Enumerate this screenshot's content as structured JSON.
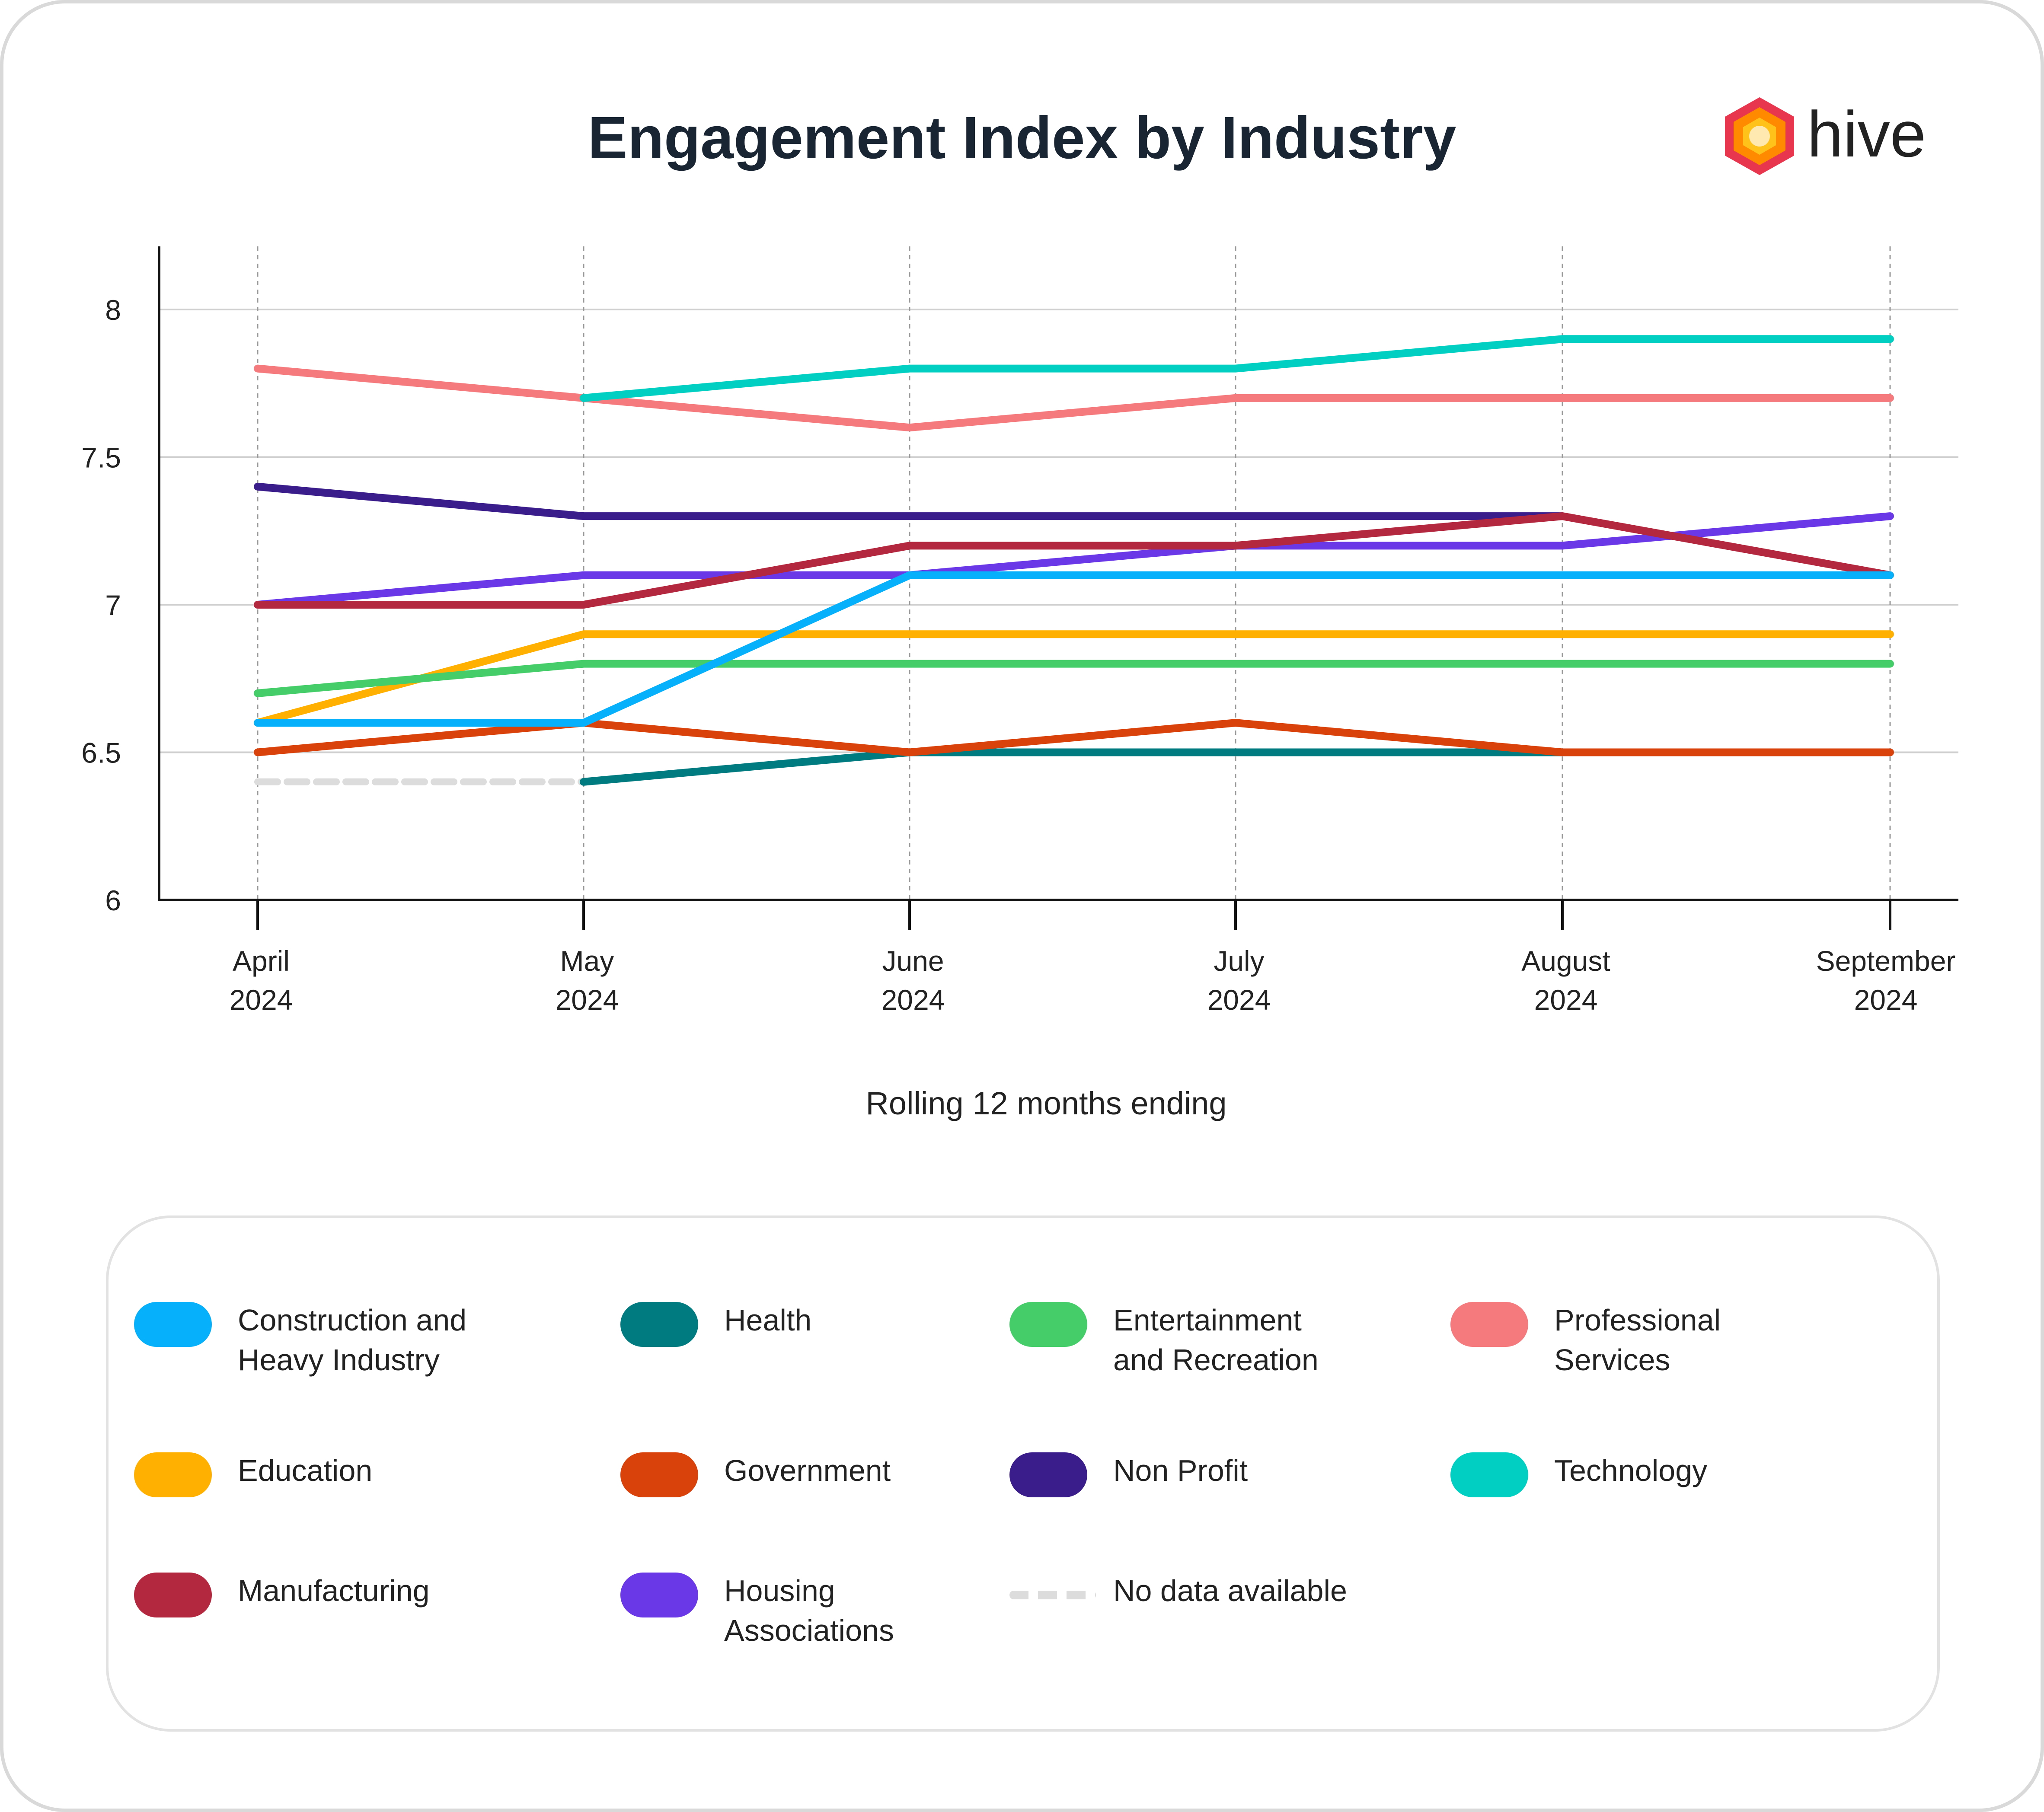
{
  "title": "Engagement Index by Industry",
  "logo": {
    "text": "hive",
    "icon": "hexagon-icon"
  },
  "chart_data": {
    "type": "line",
    "title": "Engagement Index by Industry",
    "xlabel": "Rolling 12 months ending",
    "ylabel": "",
    "categories": [
      [
        "April",
        "2024"
      ],
      [
        "May",
        "2024"
      ],
      [
        "June",
        "2024"
      ],
      [
        "July",
        "2024"
      ],
      [
        "August",
        "2024"
      ],
      [
        "September",
        "2024"
      ]
    ],
    "ylim": [
      6,
      8.2
    ],
    "yticks": [
      "6",
      "6.5",
      "7",
      "7.5",
      "8"
    ],
    "grid": true,
    "series": [
      {
        "name": "Professional Services",
        "color": "#F47A7E",
        "values": [
          7.8,
          7.7,
          7.6,
          7.7,
          7.7,
          7.7
        ]
      },
      {
        "name": "Technology",
        "color": "#00CFC1",
        "values": [
          null,
          7.7,
          7.8,
          7.8,
          7.9,
          7.9
        ]
      },
      {
        "name": "Non Profit",
        "color": "#3A1D8A",
        "values": [
          7.4,
          7.3,
          7.3,
          7.3,
          7.3,
          null
        ]
      },
      {
        "name": "Housing Associations",
        "color": "#6A38E6",
        "values": [
          7.0,
          7.1,
          7.1,
          7.2,
          7.2,
          7.3
        ]
      },
      {
        "name": "Manufacturing",
        "color": "#B4283F",
        "values": [
          7.0,
          7.0,
          7.2,
          7.2,
          7.3,
          7.1
        ]
      },
      {
        "name": "Education",
        "color": "#FFB000",
        "values": [
          6.6,
          6.9,
          6.9,
          6.9,
          6.9,
          6.9
        ]
      },
      {
        "name": "Entertainment and Recreation",
        "color": "#45CD6A",
        "values": [
          6.7,
          6.8,
          6.8,
          6.8,
          6.8,
          6.8
        ]
      },
      {
        "name": "Health",
        "color": "#007B80",
        "values": [
          null,
          6.4,
          6.5,
          6.5,
          6.5,
          null
        ]
      },
      {
        "name": "Government",
        "color": "#D9420B",
        "values": [
          6.5,
          6.6,
          6.5,
          6.6,
          6.5,
          6.5
        ]
      },
      {
        "name": "Construction and Heavy Industry",
        "color": "#06B0FA",
        "values": [
          6.6,
          6.6,
          7.1,
          7.1,
          7.1,
          7.1
        ]
      }
    ],
    "no_data": {
      "name": "No data available",
      "color": "#DCDCDC",
      "values": [
        6.4,
        6.4,
        null,
        null,
        null,
        null
      ]
    }
  },
  "legend": [
    {
      "label": "Construction and Heavy Industry",
      "color": "#06B0FA",
      "lines": [
        "Construction and",
        "Heavy Industry"
      ]
    },
    {
      "label": "Health",
      "color": "#007B80",
      "lines": [
        "Health"
      ]
    },
    {
      "label": "Entertainment and Recreation",
      "color": "#45CD6A",
      "lines": [
        "Entertainment",
        "and Recreation"
      ]
    },
    {
      "label": "Professional Services",
      "color": "#F47A7E",
      "lines": [
        "Professional",
        "Services"
      ]
    },
    {
      "label": "Education",
      "color": "#FFB000",
      "lines": [
        "Education"
      ]
    },
    {
      "label": "Government",
      "color": "#D9420B",
      "lines": [
        "Government"
      ]
    },
    {
      "label": "Non Profit",
      "color": "#3A1D8A",
      "lines": [
        "Non Profit"
      ]
    },
    {
      "label": "Technology",
      "color": "#00CFC1",
      "lines": [
        "Technology"
      ]
    },
    {
      "label": "Manufacturing",
      "color": "#B4283F",
      "lines": [
        "Manufacturing"
      ]
    },
    {
      "label": "Housing Associations",
      "color": "#6A38E6",
      "lines": [
        "Housing",
        "Associations"
      ]
    },
    {
      "label": "No data available",
      "color": "#DCDCDC",
      "dashed": true,
      "lines": [
        "No data available"
      ]
    }
  ]
}
